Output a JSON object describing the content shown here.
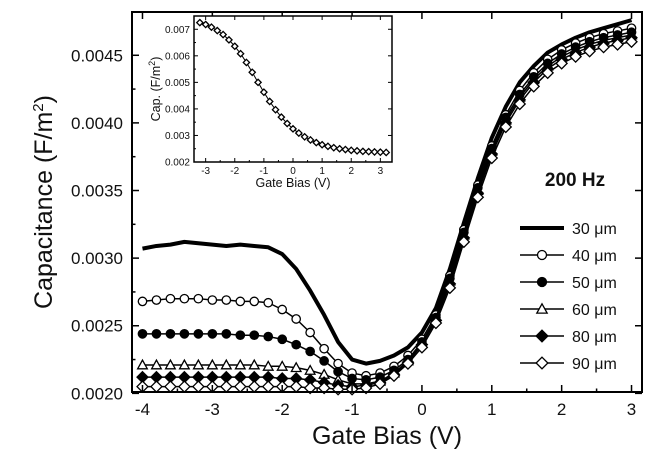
{
  "chart_data": [
    {
      "type": "line",
      "xlabel": "Gate Bias (V)",
      "ylabel": "Capacitance (F/m",
      "ylabel_sup": "2",
      "ylabel_close": ")",
      "annotation": "200 Hz",
      "xlim": [
        -4.15,
        3.15
      ],
      "ylim": [
        0.00201,
        0.00482
      ],
      "xticks": [
        -4,
        -3,
        -2,
        -1,
        0,
        1,
        2,
        3
      ],
      "yticks": [
        0.002,
        0.0025,
        0.003,
        0.0035,
        0.004,
        0.0045
      ],
      "xtick_labels": [
        "-4",
        "-3",
        "-2",
        "-1",
        "0",
        "1",
        "2",
        "3"
      ],
      "ytick_labels": [
        "0.0020",
        "0.0025",
        "0.0030",
        "0.0035",
        "0.0040",
        "0.0045"
      ],
      "grid": false,
      "legend_position": "right",
      "series": [
        {
          "name": "30 μm",
          "marker": "none",
          "color": "#000000",
          "x": [
            -4.0,
            -3.8,
            -3.6,
            -3.4,
            -3.2,
            -3.0,
            -2.8,
            -2.6,
            -2.4,
            -2.2,
            -2.0,
            -1.8,
            -1.6,
            -1.4,
            -1.2,
            -1.0,
            -0.8,
            -0.6,
            -0.4,
            -0.2,
            0.0,
            0.2,
            0.4,
            0.6,
            0.8,
            1.0,
            1.2,
            1.4,
            1.6,
            1.8,
            2.0,
            2.2,
            2.4,
            2.6,
            2.8,
            3.0
          ],
          "y": [
            0.00307,
            0.00309,
            0.0031,
            0.00312,
            0.00311,
            0.0031,
            0.00309,
            0.0031,
            0.00309,
            0.00308,
            0.00303,
            0.00292,
            0.00276,
            0.00258,
            0.00238,
            0.00225,
            0.00222,
            0.00224,
            0.00228,
            0.00234,
            0.00245,
            0.00263,
            0.00292,
            0.00326,
            0.00359,
            0.00389,
            0.00412,
            0.0043,
            0.00442,
            0.00452,
            0.00458,
            0.00463,
            0.00467,
            0.0047,
            0.00473,
            0.00476
          ]
        },
        {
          "name": "40 μm",
          "marker": "open-circle",
          "color": "#000000",
          "x": [
            -4.0,
            -3.8,
            -3.6,
            -3.4,
            -3.2,
            -3.0,
            -2.8,
            -2.6,
            -2.4,
            -2.2,
            -2.0,
            -1.8,
            -1.6,
            -1.4,
            -1.2,
            -1.0,
            -0.8,
            -0.6,
            -0.4,
            -0.2,
            0.0,
            0.2,
            0.4,
            0.6,
            0.8,
            1.0,
            1.2,
            1.4,
            1.6,
            1.8,
            2.0,
            2.2,
            2.4,
            2.6,
            2.8,
            3.0
          ],
          "y": [
            0.00268,
            0.00269,
            0.0027,
            0.0027,
            0.0027,
            0.00269,
            0.00269,
            0.00268,
            0.00268,
            0.00267,
            0.00262,
            0.00255,
            0.00245,
            0.00233,
            0.00222,
            0.00215,
            0.00213,
            0.00215,
            0.0022,
            0.00228,
            0.0024,
            0.00258,
            0.00287,
            0.00321,
            0.00354,
            0.00383,
            0.00406,
            0.00424,
            0.00437,
            0.00447,
            0.00454,
            0.00459,
            0.00463,
            0.00466,
            0.00468,
            0.0047
          ]
        },
        {
          "name": "50 μm",
          "marker": "filled-circle",
          "color": "#000000",
          "x": [
            -4.0,
            -3.8,
            -3.6,
            -3.4,
            -3.2,
            -3.0,
            -2.8,
            -2.6,
            -2.4,
            -2.2,
            -2.0,
            -1.8,
            -1.6,
            -1.4,
            -1.2,
            -1.0,
            -0.8,
            -0.6,
            -0.4,
            -0.2,
            0.0,
            0.2,
            0.4,
            0.6,
            0.8,
            1.0,
            1.2,
            1.4,
            1.6,
            1.8,
            2.0,
            2.2,
            2.4,
            2.6,
            2.8,
            3.0
          ],
          "y": [
            0.00244,
            0.00244,
            0.00244,
            0.00244,
            0.00244,
            0.00244,
            0.00244,
            0.00243,
            0.00243,
            0.00242,
            0.0024,
            0.00236,
            0.00231,
            0.00224,
            0.00216,
            0.00211,
            0.0021,
            0.00212,
            0.00217,
            0.00225,
            0.00238,
            0.00256,
            0.00285,
            0.00319,
            0.00352,
            0.00381,
            0.00404,
            0.00421,
            0.00434,
            0.00444,
            0.00451,
            0.00456,
            0.0046,
            0.00463,
            0.00465,
            0.00467
          ]
        },
        {
          "name": "60 μm",
          "marker": "open-triangle",
          "color": "#000000",
          "x": [
            -4.0,
            -3.8,
            -3.6,
            -3.4,
            -3.2,
            -3.0,
            -2.8,
            -2.6,
            -2.4,
            -2.2,
            -2.0,
            -1.8,
            -1.6,
            -1.4,
            -1.2,
            -1.0,
            -0.8,
            -0.6,
            -0.4,
            -0.2,
            0.0,
            0.2,
            0.4,
            0.6,
            0.8,
            1.0,
            1.2,
            1.4,
            1.6,
            1.8,
            2.0,
            2.2,
            2.4,
            2.6,
            2.8,
            3.0
          ],
          "y": [
            0.00221,
            0.00221,
            0.00221,
            0.00221,
            0.00221,
            0.00221,
            0.00221,
            0.00221,
            0.00221,
            0.0022,
            0.0022,
            0.00219,
            0.00217,
            0.00214,
            0.0021,
            0.00207,
            0.00207,
            0.00209,
            0.00215,
            0.00224,
            0.00237,
            0.00255,
            0.00283,
            0.00317,
            0.0035,
            0.00379,
            0.00402,
            0.00419,
            0.00432,
            0.00442,
            0.00449,
            0.00454,
            0.00458,
            0.00461,
            0.00463,
            0.00465
          ]
        },
        {
          "name": "80 μm",
          "marker": "filled-diamond",
          "color": "#000000",
          "x": [
            -4.0,
            -3.8,
            -3.6,
            -3.4,
            -3.2,
            -3.0,
            -2.8,
            -2.6,
            -2.4,
            -2.2,
            -2.0,
            -1.8,
            -1.6,
            -1.4,
            -1.2,
            -1.0,
            -0.8,
            -0.6,
            -0.4,
            -0.2,
            0.0,
            0.2,
            0.4,
            0.6,
            0.8,
            1.0,
            1.2,
            1.4,
            1.6,
            1.8,
            2.0,
            2.2,
            2.4,
            2.6,
            2.8,
            3.0
          ],
          "y": [
            0.00212,
            0.00212,
            0.00212,
            0.00212,
            0.00212,
            0.00212,
            0.00212,
            0.00212,
            0.00212,
            0.00212,
            0.00211,
            0.00211,
            0.0021,
            0.00208,
            0.00206,
            0.00205,
            0.00206,
            0.00208,
            0.00214,
            0.00223,
            0.00236,
            0.00254,
            0.00281,
            0.00315,
            0.00348,
            0.00377,
            0.004,
            0.00417,
            0.0043,
            0.0044,
            0.00447,
            0.00452,
            0.00456,
            0.00459,
            0.00461,
            0.00463
          ]
        },
        {
          "name": "90 μm",
          "marker": "open-diamond",
          "color": "#000000",
          "x": [
            -4.0,
            -3.8,
            -3.6,
            -3.4,
            -3.2,
            -3.0,
            -2.8,
            -2.6,
            -2.4,
            -2.2,
            -2.0,
            -1.8,
            -1.6,
            -1.4,
            -1.2,
            -1.0,
            -0.8,
            -0.6,
            -0.4,
            -0.2,
            0.0,
            0.2,
            0.4,
            0.6,
            0.8,
            1.0,
            1.2,
            1.4,
            1.6,
            1.8,
            2.0,
            2.2,
            2.4,
            2.6,
            2.8,
            3.0
          ],
          "y": [
            0.00205,
            0.00205,
            0.00205,
            0.00205,
            0.00205,
            0.00205,
            0.00205,
            0.00205,
            0.00205,
            0.00205,
            0.00205,
            0.00205,
            0.00204,
            0.00204,
            0.00203,
            0.00203,
            0.00204,
            0.00207,
            0.00213,
            0.00222,
            0.00234,
            0.00252,
            0.00278,
            0.00312,
            0.00345,
            0.00374,
            0.00397,
            0.00414,
            0.00427,
            0.00437,
            0.00444,
            0.00449,
            0.00453,
            0.00456,
            0.00458,
            0.0046
          ]
        }
      ]
    },
    {
      "type": "line",
      "xlabel": "Gate Bias (V)",
      "ylabel": "Cap. (F/m",
      "ylabel_sup": "2",
      "ylabel_close": ")",
      "xlim": [
        -3.4,
        3.4
      ],
      "ylim": [
        0.002,
        0.0075
      ],
      "xticks": [
        -3,
        -2,
        -1,
        0,
        1,
        2,
        3
      ],
      "yticks": [
        0.002,
        0.003,
        0.004,
        0.005,
        0.006,
        0.007
      ],
      "xtick_labels": [
        "-3",
        "-2",
        "-1",
        "0",
        "1",
        "2",
        "3"
      ],
      "ytick_labels": [
        "0.002",
        "0.003",
        "0.004",
        "0.005",
        "0.006",
        "0.007"
      ],
      "grid": false,
      "series": [
        {
          "marker": "open-diamond",
          "color": "#000000",
          "x": [
            -3.2,
            -3.0,
            -2.8,
            -2.6,
            -2.4,
            -2.2,
            -2.0,
            -1.8,
            -1.6,
            -1.4,
            -1.2,
            -1.0,
            -0.8,
            -0.6,
            -0.4,
            -0.2,
            0.0,
            0.2,
            0.4,
            0.6,
            0.8,
            1.0,
            1.2,
            1.4,
            1.6,
            1.8,
            2.0,
            2.2,
            2.4,
            2.6,
            2.8,
            3.0,
            3.2
          ],
          "y": [
            0.00725,
            0.00718,
            0.00708,
            0.00695,
            0.0068,
            0.0066,
            0.00636,
            0.00608,
            0.00575,
            0.00538,
            0.005,
            0.00463,
            0.00428,
            0.00397,
            0.00369,
            0.00345,
            0.00325,
            0.00309,
            0.00295,
            0.00283,
            0.00273,
            0.00265,
            0.00259,
            0.00254,
            0.0025,
            0.00247,
            0.00244,
            0.00242,
            0.0024,
            0.00239,
            0.00238,
            0.00237,
            0.00236
          ]
        }
      ]
    }
  ]
}
